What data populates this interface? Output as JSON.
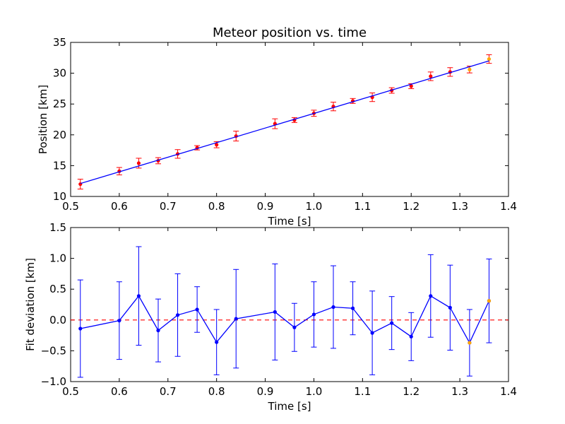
{
  "chart_data": [
    {
      "type": "scatter",
      "title": "Meteor position vs. time",
      "xlabel": "Time [s]",
      "ylabel": "Position [km]",
      "xlim": [
        0.5,
        1.4
      ],
      "ylim": [
        10,
        35
      ],
      "x_ticks": [
        "0.5",
        "0.6",
        "0.7",
        "0.8",
        "0.9",
        "1.0",
        "1.1",
        "1.2",
        "1.3",
        "1.4"
      ],
      "y_ticks": [
        "10",
        "15",
        "20",
        "25",
        "30",
        "35"
      ],
      "grid": false,
      "series": [
        {
          "kind": "errorbar-points",
          "color": "#ff0000",
          "errorbar_color": "#ff0000",
          "x": [
            0.52,
            0.6,
            0.64,
            0.68,
            0.72,
            0.76,
            0.8,
            0.84,
            0.92,
            0.96,
            1.0,
            1.04,
            1.08,
            1.12,
            1.16,
            1.2,
            1.24,
            1.28
          ],
          "y": [
            12.0,
            14.1,
            15.4,
            15.8,
            16.9,
            17.9,
            18.4,
            19.8,
            21.8,
            22.4,
            23.5,
            24.6,
            25.5,
            26.1,
            27.2,
            27.9,
            29.5,
            30.2
          ],
          "yerr": [
            0.8,
            0.6,
            0.8,
            0.5,
            0.7,
            0.35,
            0.5,
            0.8,
            0.8,
            0.4,
            0.5,
            0.7,
            0.4,
            0.7,
            0.45,
            0.4,
            0.7,
            0.7
          ]
        },
        {
          "kind": "errorbar-points",
          "color": "#ffa500",
          "errorbar_color": "#ff0000",
          "x": [
            1.32,
            1.36
          ],
          "y": [
            30.6,
            32.3
          ],
          "yerr": [
            0.55,
            0.7
          ]
        },
        {
          "kind": "fit-line",
          "color": "#0000ff",
          "x": [
            0.52,
            1.36
          ],
          "y": [
            12.1,
            32.0
          ]
        }
      ]
    },
    {
      "type": "line",
      "title": "",
      "xlabel": "Time [s]",
      "ylabel": "Fit deviation [km]",
      "xlim": [
        0.5,
        1.4
      ],
      "ylim": [
        -1.0,
        1.5
      ],
      "x_ticks": [
        "0.5",
        "0.6",
        "0.7",
        "0.8",
        "0.9",
        "1.0",
        "1.1",
        "1.2",
        "1.3",
        "1.4"
      ],
      "y_ticks": [
        "−1.0",
        "−0.5",
        "0.0",
        "0.5",
        "1.0",
        "1.5"
      ],
      "grid": false,
      "reference_line": {
        "y": 0.0,
        "color": "#ff0000",
        "style": "dashed"
      },
      "series": [
        {
          "kind": "line-errorbar",
          "color": "#0000ff",
          "x": [
            0.52,
            0.6,
            0.64,
            0.68,
            0.72,
            0.76,
            0.8,
            0.84,
            0.92,
            0.96,
            1.0,
            1.04,
            1.08,
            1.12,
            1.16,
            1.2,
            1.24,
            1.28,
            1.32,
            1.36
          ],
          "y": [
            -0.14,
            -0.01,
            0.39,
            -0.17,
            0.08,
            0.17,
            -0.36,
            0.02,
            0.13,
            -0.12,
            0.09,
            0.21,
            0.19,
            -0.21,
            -0.05,
            -0.27,
            0.39,
            0.2,
            -0.37,
            0.31
          ],
          "yerr": [
            0.79,
            0.63,
            0.8,
            0.51,
            0.67,
            0.37,
            0.53,
            0.8,
            0.78,
            0.39,
            0.53,
            0.67,
            0.43,
            0.68,
            0.43,
            0.39,
            0.67,
            0.69,
            0.54,
            0.68
          ],
          "highlight_points": [
            {
              "x": 1.32,
              "y": -0.37,
              "color": "#ffa500"
            },
            {
              "x": 1.36,
              "y": 0.31,
              "color": "#ffa500"
            }
          ]
        }
      ]
    }
  ]
}
